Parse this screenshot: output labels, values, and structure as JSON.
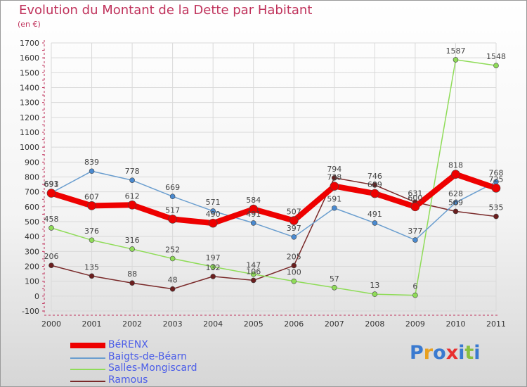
{
  "header": {
    "title": "Evolution du Montant de la Dette par Habitant",
    "subtitle": "(en €)"
  },
  "colors": {
    "title": "#c0335c",
    "legend_text": "#4c5ee8",
    "BéRENX": "#ee0000",
    "Baigts-de-Béarn": "#6a9ecf",
    "Salles-Mongiscard": "#8fdc58",
    "Ramous": "#7a2a2a"
  },
  "logo": {
    "text": "Proxiti",
    "letter_colors": [
      "#3a7ad0",
      "#e8a020",
      "#3a7ad0",
      "#e83030",
      "#3a7ad0",
      "#8ac040",
      "#3a7ad0"
    ]
  },
  "chart_data": {
    "type": "line",
    "title": "Evolution du Montant de la Dette par Habitant",
    "subtitle": "(en €)",
    "x": [
      "2000",
      "2001",
      "2002",
      "2003",
      "2004",
      "2005",
      "2006",
      "2007",
      "2008",
      "2009",
      "2010",
      "2011"
    ],
    "ylim": [
      -100,
      1700
    ],
    "yticks": [
      -100,
      0,
      100,
      200,
      300,
      400,
      500,
      600,
      700,
      800,
      900,
      1000,
      1100,
      1200,
      1300,
      1400,
      1500,
      1600,
      1700
    ],
    "grid": true,
    "legend_position": "bottom-left",
    "series": [
      {
        "name": "BéRENX",
        "values": [
          691,
          607,
          612,
          517,
          490,
          584,
          507,
          738,
          689,
          600,
          818,
          725
        ]
      },
      {
        "name": "Baigts-de-Béarn",
        "values": [
          693,
          839,
          778,
          669,
          571,
          491,
          397,
          591,
          491,
          377,
          628,
          768
        ]
      },
      {
        "name": "Salles-Mongiscard",
        "values": [
          458,
          376,
          316,
          252,
          197,
          147,
          100,
          57,
          13,
          6,
          1587,
          1548
        ]
      },
      {
        "name": "Ramous",
        "values": [
          206,
          135,
          88,
          48,
          132,
          106,
          205,
          794,
          746,
          631,
          569,
          535
        ]
      }
    ]
  }
}
